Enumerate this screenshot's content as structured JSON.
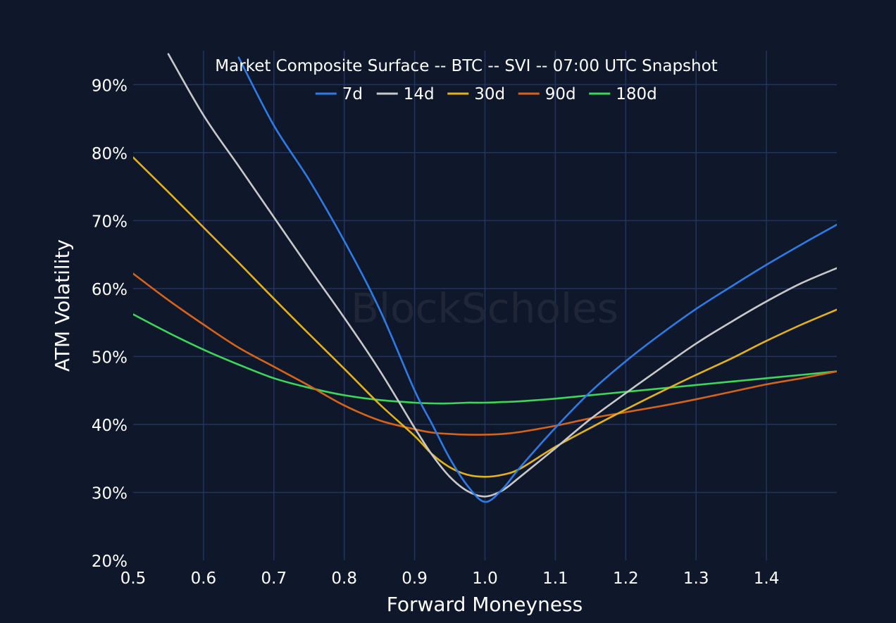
{
  "chart_data": {
    "type": "line",
    "title": "Market Composite Surface -- BTC -- SVI -- 07:00 UTC Snapshot",
    "xlabel": "Forward Moneyness",
    "ylabel": "ATM Volatility",
    "watermark": "BlockScholes",
    "xlim": [
      0.5,
      1.5
    ],
    "ylim": [
      20,
      95
    ],
    "x_ticks": [
      0.5,
      0.6,
      0.7,
      0.8,
      0.9,
      1.0,
      1.1,
      1.2,
      1.3,
      1.4
    ],
    "x_tick_labels": [
      "0.5",
      "0.6",
      "0.7",
      "0.8",
      "0.9",
      "1.0",
      "1.1",
      "1.2",
      "1.3",
      "1.4"
    ],
    "y_ticks": [
      20,
      30,
      40,
      50,
      60,
      70,
      80,
      90
    ],
    "y_tick_labels": [
      "20%",
      "30%",
      "40%",
      "50%",
      "60%",
      "70%",
      "80%",
      "90%"
    ],
    "grid": true,
    "legend_position": "top-center",
    "background_color": "#0f182b",
    "grid_color": "#22345a",
    "x": [
      0.5,
      0.55,
      0.6,
      0.65,
      0.7,
      0.75,
      0.8,
      0.85,
      0.9,
      0.925,
      0.95,
      0.975,
      1.0,
      1.025,
      1.05,
      1.1,
      1.15,
      1.2,
      1.25,
      1.3,
      1.35,
      1.4,
      1.45,
      1.5
    ],
    "series": [
      {
        "name": "7d",
        "color": "#2f7be6",
        "values": [
          null,
          null,
          null,
          94,
          84,
          76,
          67,
          57,
          45,
          40,
          35,
          31,
          28.6,
          30.5,
          33.7,
          39.5,
          44.8,
          49.3,
          53.3,
          57.0,
          60.3,
          63.5,
          66.5,
          69.4
        ]
      },
      {
        "name": "14d",
        "color": "#c8c8c8",
        "values": [
          null,
          94.5,
          85.5,
          78,
          70.5,
          63,
          55.7,
          48,
          39.5,
          35.5,
          32.3,
          30.2,
          29.4,
          30.3,
          32.3,
          36.5,
          40.8,
          44.6,
          48.3,
          51.9,
          55.1,
          58.1,
          60.8,
          63.0
        ]
      },
      {
        "name": "30d",
        "color": "#e3b21a",
        "values": [
          79.3,
          74.2,
          69,
          63.8,
          58.5,
          53.3,
          48.2,
          43,
          38.3,
          35.6,
          33.7,
          32.6,
          32.3,
          32.6,
          33.5,
          36.7,
          39.5,
          42.2,
          44.8,
          47.3,
          49.7,
          52.3,
          54.7,
          56.9
        ]
      },
      {
        "name": "90d",
        "color": "#d4631c",
        "values": [
          62.2,
          58.3,
          54.7,
          51.3,
          48.5,
          45.7,
          42.8,
          40.6,
          39.3,
          38.8,
          38.6,
          38.5,
          38.5,
          38.6,
          38.9,
          39.8,
          40.9,
          41.8,
          42.7,
          43.7,
          44.8,
          45.9,
          46.8,
          47.8
        ]
      },
      {
        "name": "180d",
        "color": "#3ed65a",
        "values": [
          56.2,
          53.5,
          51,
          48.8,
          46.8,
          45.4,
          44.3,
          43.6,
          43.2,
          43.1,
          43.1,
          43.2,
          43.2,
          43.3,
          43.4,
          43.8,
          44.3,
          44.8,
          45.3,
          45.8,
          46.3,
          46.8,
          47.3,
          47.8
        ]
      }
    ]
  }
}
